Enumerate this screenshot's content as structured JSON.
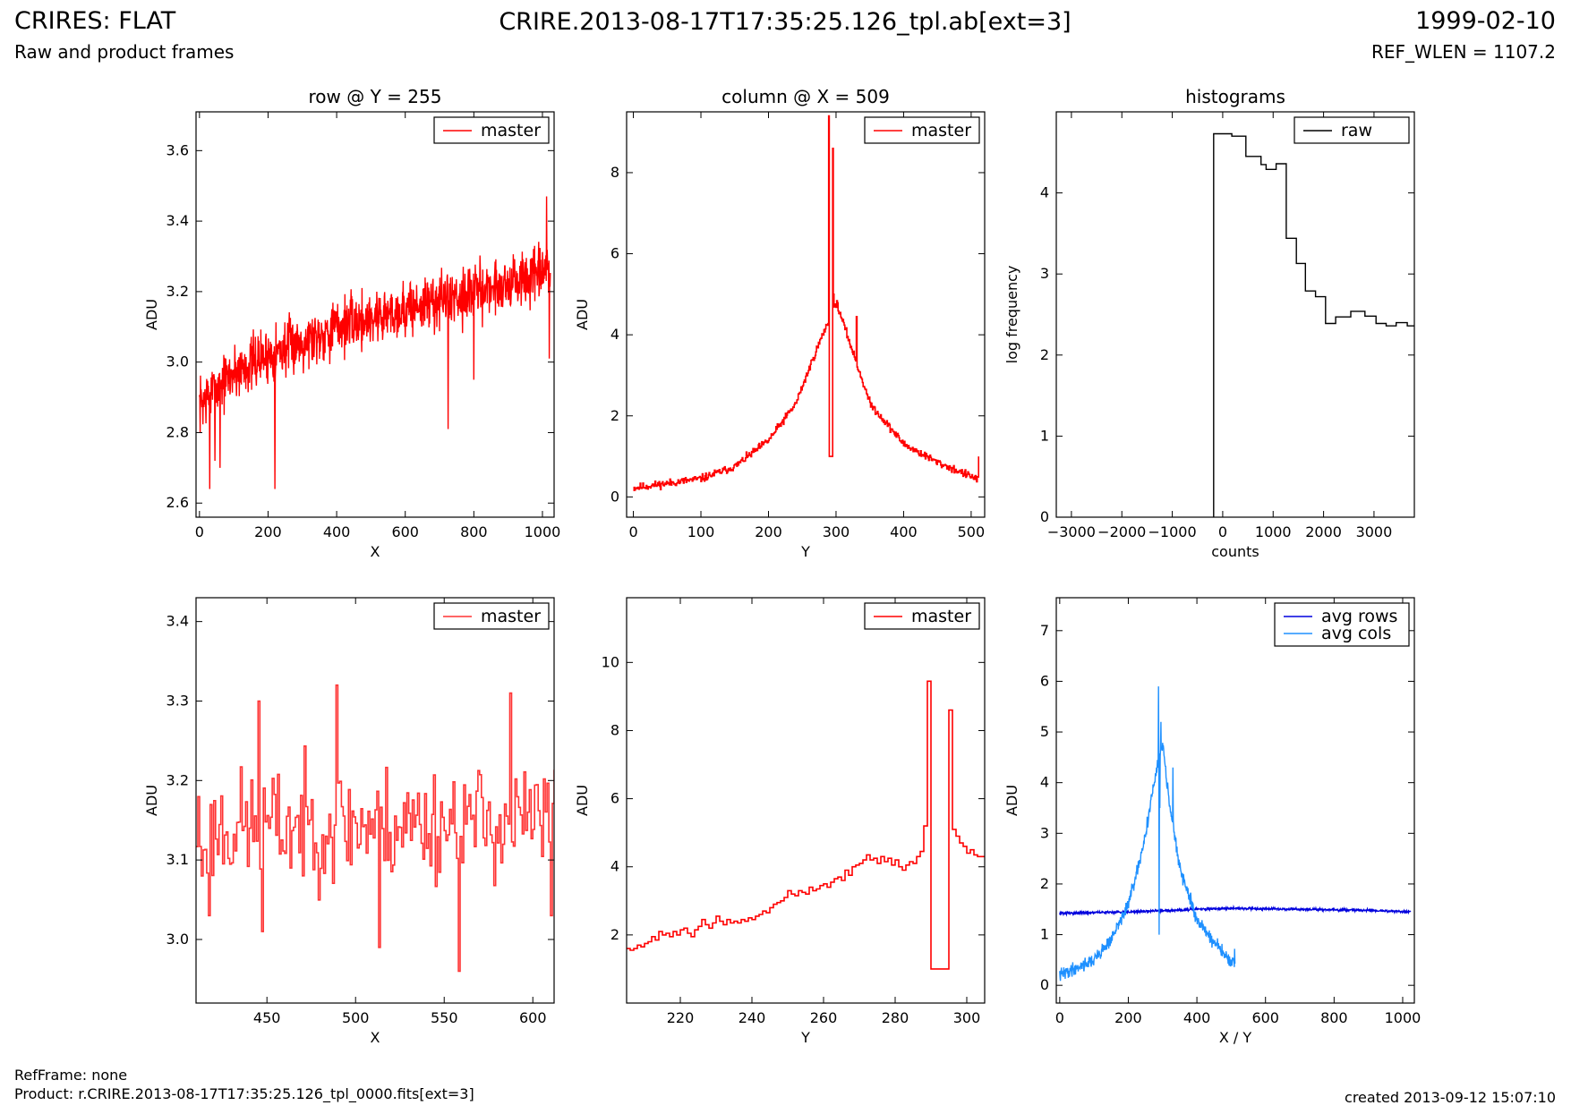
{
  "header": {
    "title": "CRIRES: FLAT",
    "subtitle": "Raw and product frames",
    "center_title": "CRIRE.2013-08-17T17:35:25.126_tpl.ab[ext=3]",
    "date": "1999-02-10",
    "ref_wlen": "REF_WLEN = 1107.2"
  },
  "footer": {
    "refframe": "RefFrame: none",
    "product": "Product: r.CRIRE.2013-08-17T17:35:25.126_tpl_0000.fits[ext=3]",
    "created": "created 2013-09-12 15:07:10"
  },
  "chart_data": [
    {
      "id": "row-full",
      "type": "line",
      "title": "row @ Y = 255",
      "xlabel": "X",
      "ylabel": "ADU",
      "xlim": [
        -10,
        1034
      ],
      "ylim": [
        2.56,
        3.71
      ],
      "xticks": [
        0,
        200,
        400,
        600,
        800,
        1000
      ],
      "yticks": [
        2.6,
        2.8,
        3.0,
        3.2,
        3.4,
        3.6
      ],
      "xtick_labels": [
        "0",
        "200",
        "400",
        "600",
        "800",
        "1000"
      ],
      "ytick_labels": [
        "2.6",
        "2.8",
        "3.0",
        "3.2",
        "3.4",
        "3.6"
      ],
      "legend": "top-right",
      "series": [
        {
          "name": "master",
          "color": "#ff0000",
          "step": false,
          "gen": {
            "kind": "noise",
            "x0": 0,
            "x1": 1023,
            "n": 1024,
            "trend": [
              [
                0,
                2.88
              ],
              [
                100,
                2.97
              ],
              [
                200,
                3.02
              ],
              [
                400,
                3.1
              ],
              [
                600,
                3.15
              ],
              [
                800,
                3.2
              ],
              [
                1023,
                3.25
              ]
            ],
            "amp": 0.05,
            "seed": 7,
            "spikes": [
              [
                30,
                2.64
              ],
              [
                45,
                2.72
              ],
              [
                60,
                2.7
              ],
              [
                220,
                2.64
              ],
              [
                725,
                2.81
              ],
              [
                800,
                2.95
              ],
              [
                1012,
                3.47
              ],
              [
                1020,
                3.01
              ]
            ]
          }
        }
      ]
    },
    {
      "id": "col-full",
      "type": "line",
      "title": "column @ X = 509",
      "xlabel": "Y",
      "ylabel": "ADU",
      "xlim": [
        -10,
        520
      ],
      "ylim": [
        -0.5,
        9.5
      ],
      "xticks": [
        0,
        100,
        200,
        300,
        400,
        500
      ],
      "yticks": [
        0,
        2,
        4,
        6,
        8
      ],
      "xtick_labels": [
        "0",
        "100",
        "200",
        "300",
        "400",
        "500"
      ],
      "ytick_labels": [
        "0",
        "2",
        "4",
        "6",
        "8"
      ],
      "legend": "top-right",
      "series": [
        {
          "name": "master",
          "color": "#ff0000",
          "step": true,
          "gen": {
            "kind": "noise",
            "x0": 0,
            "x1": 511,
            "n": 512,
            "trend": [
              [
                0,
                0.22
              ],
              [
                100,
                0.45
              ],
              [
                150,
                0.75
              ],
              [
                200,
                1.4
              ],
              [
                240,
                2.3
              ],
              [
                270,
                3.6
              ],
              [
                285,
                4.2
              ],
              [
                300,
                4.8
              ],
              [
                320,
                3.8
              ],
              [
                350,
                2.3
              ],
              [
                400,
                1.3
              ],
              [
                450,
                0.85
              ],
              [
                500,
                0.5
              ],
              [
                508,
                0.45
              ]
            ],
            "amp": 0.06,
            "seed": 11,
            "spikes": [
              [
                289,
                9.4
              ],
              [
                290,
                1.0
              ],
              [
                291,
                1.0
              ],
              [
                292,
                1.0
              ],
              [
                293,
                1.0
              ],
              [
                294,
                1.0
              ],
              [
                295,
                8.6
              ],
              [
                296,
                5.0
              ],
              [
                330,
                4.45
              ],
              [
                511,
                1.0
              ]
            ]
          }
        }
      ]
    },
    {
      "id": "hist",
      "type": "line",
      "title": "histograms",
      "xlabel": "counts",
      "ylabel": "log frequency",
      "xlim": [
        -3300,
        3800
      ],
      "ylim": [
        0,
        5.0
      ],
      "xticks": [
        -3000,
        -2000,
        -1000,
        0,
        1000,
        2000,
        3000
      ],
      "yticks": [
        0,
        1,
        2,
        3,
        4
      ],
      "xtick_labels": [
        "−3000",
        "−2000",
        "−1000",
        "0",
        "1000",
        "2000",
        "3000"
      ],
      "ytick_labels": [
        "0",
        "1",
        "2",
        "3",
        "4"
      ],
      "legend": "top-right",
      "series": [
        {
          "name": "raw",
          "color": "#000000",
          "step": false,
          "x": [
            -180,
            -180,
            180,
            180,
            460,
            460,
            760,
            760,
            860,
            860,
            1060,
            1060,
            1260,
            1260,
            1460,
            1460,
            1640,
            1640,
            1840,
            1840,
            2040,
            2040,
            2240,
            2240,
            2540,
            2540,
            2820,
            2820,
            3040,
            3040,
            3240,
            3240,
            3440,
            3440,
            3660,
            3660,
            3800
          ],
          "y": [
            0,
            4.73,
            4.73,
            4.7,
            4.7,
            4.45,
            4.45,
            4.35,
            4.35,
            4.29,
            4.29,
            4.36,
            4.36,
            3.44,
            3.44,
            3.13,
            3.13,
            2.79,
            2.79,
            2.72,
            2.72,
            2.39,
            2.39,
            2.47,
            2.47,
            2.54,
            2.54,
            2.48,
            2.48,
            2.39,
            2.39,
            2.36,
            2.36,
            2.4,
            2.4,
            2.36,
            2.36
          ]
        }
      ]
    },
    {
      "id": "row-zoom",
      "type": "line",
      "title": "",
      "xlabel": "X",
      "ylabel": "ADU",
      "xlim": [
        410,
        612
      ],
      "ylim": [
        2.92,
        3.43
      ],
      "xticks": [
        450,
        500,
        550,
        600
      ],
      "yticks": [
        3.0,
        3.1,
        3.2,
        3.3,
        3.4
      ],
      "xtick_labels": [
        "450",
        "500",
        "550",
        "600"
      ],
      "ytick_labels": [
        "3.0",
        "3.1",
        "3.2",
        "3.3",
        "3.4"
      ],
      "legend": "top-right",
      "series": [
        {
          "name": "master",
          "color": "#ff3333",
          "step": true,
          "gen": {
            "kind": "noise",
            "x0": 410,
            "x1": 612,
            "n": 203,
            "trend": [
              [
                410,
                3.14
              ],
              [
                612,
                3.15
              ]
            ],
            "amp": 0.045,
            "seed": 23,
            "spikes": [
              [
                413,
                3.08
              ],
              [
                417,
                3.03
              ],
              [
                445,
                3.3
              ],
              [
                447,
                3.01
              ],
              [
                489,
                3.32
              ],
              [
                513,
                2.99
              ],
              [
                558,
                2.96
              ],
              [
                587,
                3.31
              ],
              [
                610,
                3.03
              ]
            ]
          }
        }
      ]
    },
    {
      "id": "col-zoom",
      "type": "line",
      "title": "",
      "xlabel": "Y",
      "ylabel": "ADU",
      "xlim": [
        205,
        305
      ],
      "ylim": [
        0.0,
        11.9
      ],
      "xticks": [
        220,
        240,
        260,
        280,
        300
      ],
      "yticks": [
        2,
        4,
        6,
        8,
        10
      ],
      "xtick_labels": [
        "220",
        "240",
        "260",
        "280",
        "300"
      ],
      "ytick_labels": [
        "2",
        "4",
        "6",
        "8",
        "10"
      ],
      "legend": "top-right",
      "series": [
        {
          "name": "master",
          "color": "#ff0000",
          "step": true,
          "x": [
            205,
            206,
            207,
            208,
            209,
            210,
            211,
            212,
            213,
            214,
            215,
            216,
            217,
            218,
            219,
            220,
            221,
            222,
            223,
            224,
            225,
            226,
            227,
            228,
            229,
            230,
            231,
            232,
            233,
            234,
            235,
            236,
            237,
            238,
            239,
            240,
            241,
            242,
            243,
            244,
            245,
            246,
            247,
            248,
            249,
            250,
            251,
            252,
            253,
            254,
            255,
            256,
            257,
            258,
            259,
            260,
            261,
            262,
            263,
            264,
            265,
            266,
            267,
            268,
            269,
            270,
            271,
            272,
            273,
            274,
            275,
            276,
            277,
            278,
            279,
            280,
            281,
            282,
            283,
            284,
            285,
            286,
            287,
            288,
            289,
            290,
            291,
            292,
            293,
            294,
            295,
            296,
            297,
            298,
            299,
            300,
            301,
            302,
            303,
            304,
            305
          ],
          "y": [
            1.6,
            1.55,
            1.6,
            1.7,
            1.65,
            1.75,
            1.8,
            1.95,
            1.85,
            2.1,
            2.0,
            2.05,
            1.95,
            2.1,
            2.0,
            2.15,
            2.2,
            2.05,
            1.95,
            2.15,
            2.25,
            2.45,
            2.3,
            2.2,
            2.35,
            2.55,
            2.4,
            2.3,
            2.45,
            2.35,
            2.4,
            2.35,
            2.45,
            2.4,
            2.5,
            2.45,
            2.55,
            2.6,
            2.7,
            2.65,
            2.8,
            2.9,
            2.95,
            3.0,
            3.1,
            3.3,
            3.2,
            3.15,
            3.3,
            3.25,
            3.2,
            3.4,
            3.3,
            3.35,
            3.45,
            3.5,
            3.4,
            3.55,
            3.65,
            3.7,
            3.6,
            3.9,
            3.75,
            4.0,
            4.05,
            4.1,
            4.2,
            4.35,
            4.2,
            4.25,
            4.1,
            4.3,
            4.15,
            4.25,
            4.05,
            4.2,
            4.0,
            3.9,
            4.05,
            4.15,
            4.1,
            4.3,
            4.45,
            5.2,
            9.45,
            1.0,
            1.0,
            1.0,
            1.0,
            1.0,
            8.6,
            5.1,
            4.9,
            4.7,
            4.6,
            4.4,
            4.5,
            4.35,
            4.3,
            4.3,
            4.3
          ]
        }
      ]
    },
    {
      "id": "avg",
      "type": "line",
      "title": "",
      "xlabel": "X / Y",
      "ylabel": "ADU",
      "xlim": [
        -10,
        1034
      ],
      "ylim": [
        -0.35,
        7.65
      ],
      "xticks": [
        0,
        200,
        400,
        600,
        800,
        1000
      ],
      "yticks": [
        0,
        1,
        2,
        3,
        4,
        5,
        6,
        7
      ],
      "xtick_labels": [
        "0",
        "200",
        "400",
        "600",
        "800",
        "1000"
      ],
      "ytick_labels": [
        "0",
        "1",
        "2",
        "3",
        "4",
        "5",
        "6",
        "7"
      ],
      "legend": "top-right",
      "series": [
        {
          "name": "avg rows",
          "color": "#0000dd",
          "step": false,
          "gen": {
            "kind": "noise",
            "x0": 0,
            "x1": 1023,
            "n": 1024,
            "trend": [
              [
                0,
                1.42
              ],
              [
                200,
                1.45
              ],
              [
                400,
                1.5
              ],
              [
                500,
                1.52
              ],
              [
                700,
                1.5
              ],
              [
                900,
                1.48
              ],
              [
                1023,
                1.45
              ]
            ],
            "amp": 0.015,
            "seed": 31,
            "spikes": []
          }
        },
        {
          "name": "avg cols",
          "color": "#1e90ff",
          "step": false,
          "gen": {
            "kind": "noise",
            "x0": 0,
            "x1": 511,
            "n": 512,
            "trend": [
              [
                0,
                0.2
              ],
              [
                100,
                0.5
              ],
              [
                150,
                0.9
              ],
              [
                200,
                1.6
              ],
              [
                240,
                2.6
              ],
              [
                270,
                3.8
              ],
              [
                285,
                4.3
              ],
              [
                300,
                4.8
              ],
              [
                320,
                3.6
              ],
              [
                350,
                2.3
              ],
              [
                400,
                1.3
              ],
              [
                450,
                0.85
              ],
              [
                500,
                0.45
              ],
              [
                508,
                0.4
              ]
            ],
            "amp": 0.08,
            "seed": 41,
            "spikes": [
              [
                288,
                5.9
              ],
              [
                290,
                1.0
              ],
              [
                292,
                3.5
              ],
              [
                295,
                5.2
              ],
              [
                330,
                4.3
              ],
              [
                508,
                0.45
              ],
              [
                510,
                0.72
              ]
            ]
          }
        }
      ]
    }
  ]
}
